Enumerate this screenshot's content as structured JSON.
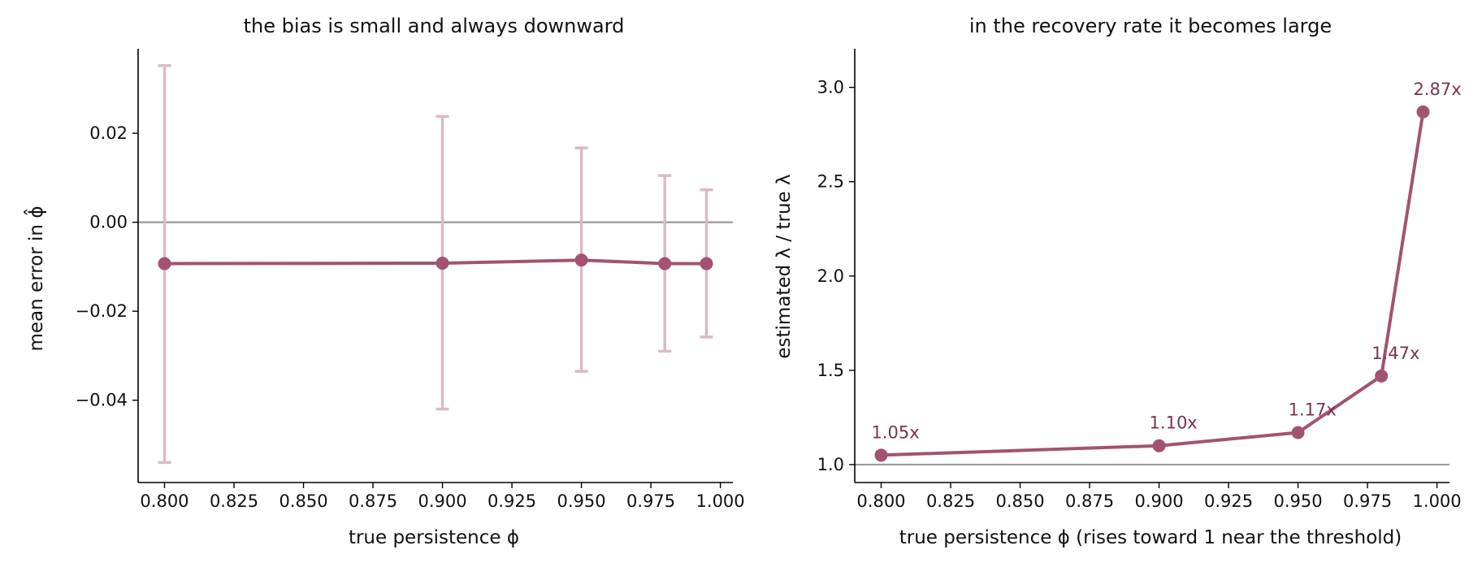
{
  "colors": {
    "line": "#a35271",
    "errorbar": "#dbbac7",
    "reference": "#999999",
    "annotation": "#7a3352",
    "axis": "#000000"
  },
  "chart_data": [
    {
      "type": "line",
      "title": "the bias is small and always downward",
      "xlabel": "true persistence ϕ",
      "ylabel": "mean error in ϕ̂",
      "x": [
        0.8,
        0.9,
        0.95,
        0.98,
        0.995
      ],
      "values": [
        -0.0093,
        -0.0092,
        -0.0085,
        -0.0093,
        -0.0093
      ],
      "errors": [
        {
          "low": -0.054,
          "high": 0.0352
        },
        {
          "low": -0.042,
          "high": 0.0238
        },
        {
          "low": -0.0335,
          "high": 0.0167
        },
        {
          "low": -0.029,
          "high": 0.0105
        },
        {
          "low": -0.0258,
          "high": 0.0073
        }
      ],
      "reference_line": 0.0,
      "xlim": [
        0.7905,
        1.0045
      ],
      "ylim": [
        -0.0585,
        0.039
      ],
      "xticks": [
        "0.800",
        "0.825",
        "0.850",
        "0.875",
        "0.900",
        "0.925",
        "0.950",
        "0.975",
        "1.000"
      ],
      "yticks": [
        "−0.04",
        "−0.02",
        "0.00",
        "0.02"
      ],
      "ytick_values": [
        -0.04,
        -0.02,
        0.0,
        0.02
      ],
      "grid": false
    },
    {
      "type": "line",
      "title": "in the recovery rate it becomes large",
      "xlabel": "true persistence ϕ (rises toward 1 near the threshold)",
      "ylabel": "estimated λ / true λ",
      "x": [
        0.8,
        0.9,
        0.95,
        0.98,
        0.995
      ],
      "values": [
        1.05,
        1.1,
        1.17,
        1.47,
        2.87
      ],
      "data_labels": [
        "1.05x",
        "1.10x",
        "1.17x",
        "1.47x",
        "2.87x"
      ],
      "reference_line": 1.0,
      "xlim": [
        0.7905,
        1.0045
      ],
      "ylim": [
        0.905,
        3.205
      ],
      "xticks": [
        "0.800",
        "0.825",
        "0.850",
        "0.875",
        "0.900",
        "0.925",
        "0.950",
        "0.975",
        "1.000"
      ],
      "yticks": [
        "1.0",
        "1.5",
        "2.0",
        "2.5",
        "3.0"
      ],
      "ytick_values": [
        1.0,
        1.5,
        2.0,
        2.5,
        3.0
      ],
      "grid": false
    }
  ]
}
